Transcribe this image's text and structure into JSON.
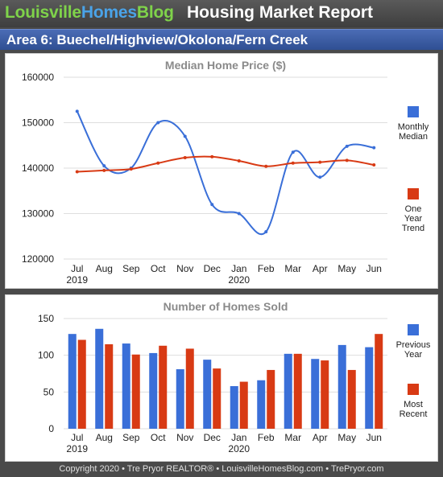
{
  "header": {
    "brand_part1": "Louisville",
    "brand_part2": "Homes",
    "brand_part3": "Blog",
    "report_title": "Housing Market Report"
  },
  "area_title": "Area 6: Buechel/Highview/Okolona/Fern Creek",
  "colors": {
    "blue": "#3a6fd8",
    "red": "#d83a14",
    "brand_green": "#7fd34a",
    "brand_blue": "#4aa3e8",
    "area_bar": "#3a5ba5"
  },
  "footer": {
    "text": "Copyright 2020 • Tre Pryor REALTOR® • LouisvilleHomesBlog.com • TrePryor.com"
  },
  "chart_data": [
    {
      "type": "line",
      "title": "Median Home Price ($)",
      "categories": [
        "Jul",
        "Aug",
        "Sep",
        "Oct",
        "Nov",
        "Dec",
        "Jan",
        "Feb",
        "Mar",
        "Apr",
        "May",
        "Jun"
      ],
      "year_labels": [
        "2019",
        "2020"
      ],
      "ylim": [
        120000,
        160000
      ],
      "yticks": [
        "160000",
        "150000",
        "140000",
        "130000",
        "120000"
      ],
      "series": [
        {
          "name": "Monthly Median",
          "name_lines": [
            "Monthly",
            "Median"
          ],
          "color": "#3a6fd8",
          "smooth": true,
          "values": [
            152500,
            140500,
            140000,
            150000,
            147000,
            132000,
            130000,
            126000,
            143500,
            138000,
            144800,
            144500
          ]
        },
        {
          "name": "One Year Trend",
          "name_lines": [
            "One",
            "Year",
            "Trend"
          ],
          "color": "#d83a14",
          "smooth": true,
          "values": [
            139200,
            139500,
            139800,
            141100,
            142300,
            142500,
            141600,
            140400,
            141100,
            141300,
            141700,
            140700
          ]
        }
      ],
      "grid": true,
      "legend": "right"
    },
    {
      "type": "bar",
      "title": "Number of Homes Sold",
      "categories": [
        "Jul",
        "Aug",
        "Sep",
        "Oct",
        "Nov",
        "Dec",
        "Jan",
        "Feb",
        "Mar",
        "Apr",
        "May",
        "Jun"
      ],
      "year_labels": [
        "2019",
        "2020"
      ],
      "ylim": [
        0,
        150
      ],
      "yticks": [
        "150",
        "100",
        "50",
        "0"
      ],
      "series": [
        {
          "name": "Previous Year",
          "name_lines": [
            "Previous",
            "Year"
          ],
          "color": "#3a6fd8",
          "values": [
            129,
            136,
            116,
            103,
            81,
            94,
            58,
            66,
            102,
            95,
            114,
            111
          ]
        },
        {
          "name": "Most Recent",
          "name_lines": [
            "Most",
            "Recent"
          ],
          "color": "#d83a14",
          "values": [
            121,
            115,
            101,
            113,
            109,
            82,
            64,
            80,
            102,
            93,
            80,
            129
          ]
        }
      ],
      "grid": true,
      "legend": "right"
    }
  ]
}
